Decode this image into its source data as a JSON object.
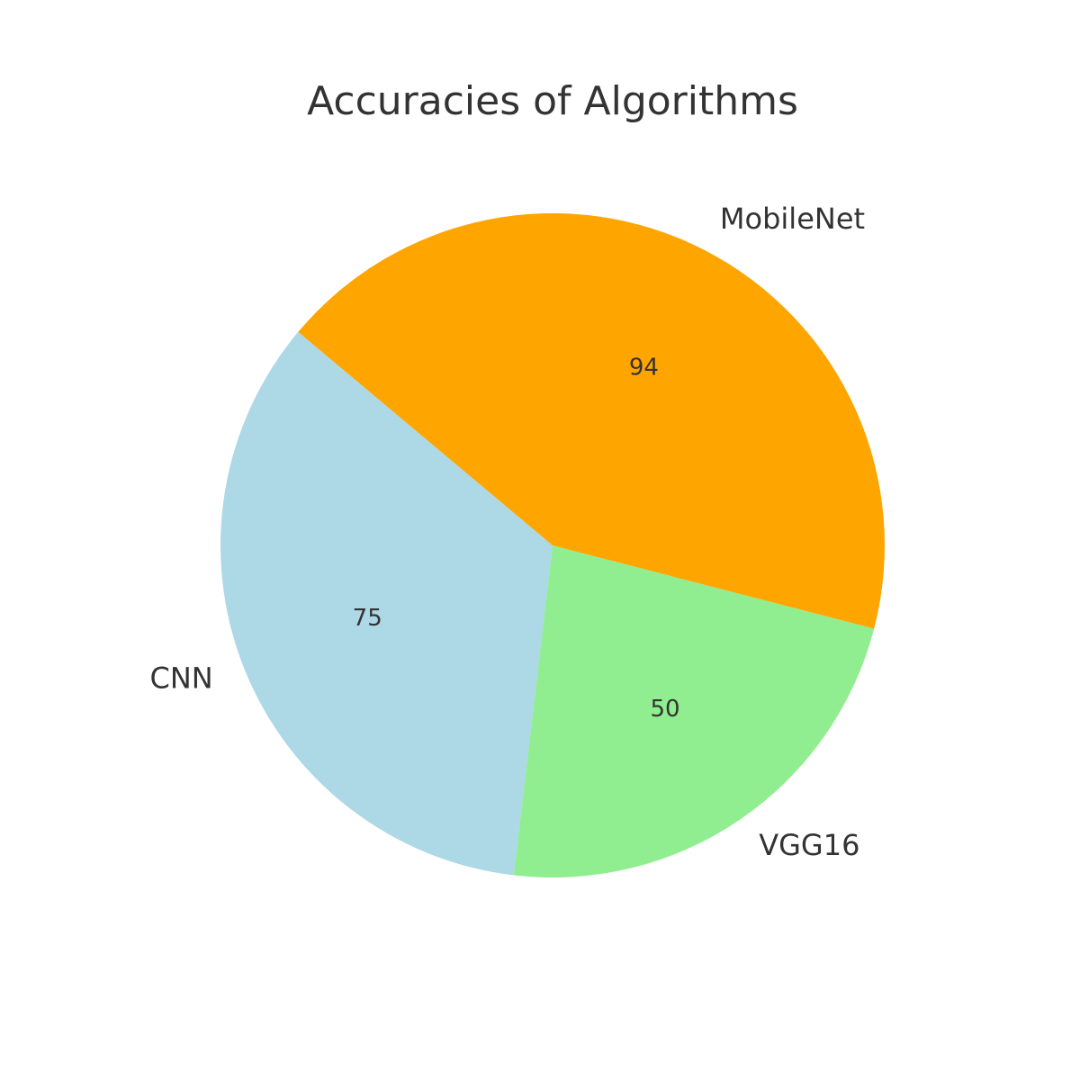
{
  "chart_data": {
    "type": "pie",
    "title": "Accuracies of Algorithms",
    "categories": [
      "CNN",
      "VGG16",
      "MobileNet"
    ],
    "values": [
      75,
      50,
      94
    ],
    "value_labels": [
      "75",
      "50",
      "94"
    ],
    "colors": [
      "#add8e6",
      "#90ee90",
      "#ffa500"
    ],
    "start_angle_deg": 140,
    "direction": "counterclockwise",
    "legend": "none"
  }
}
